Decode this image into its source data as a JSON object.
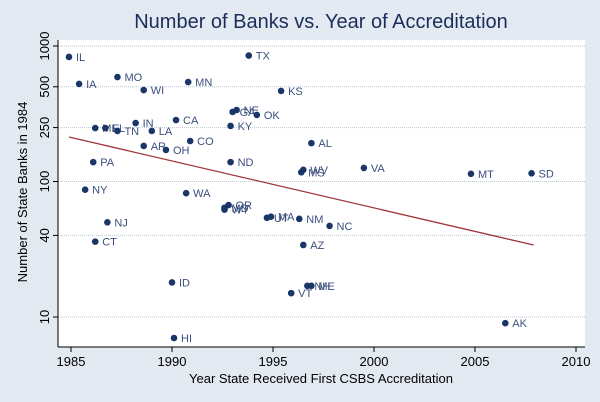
{
  "chart_data": {
    "type": "scatter",
    "title": "Number of Banks vs. Year of Accreditation",
    "xlabel": "Year State Received First CSBS Accreditation",
    "ylabel": "Number of State Banks in 1984",
    "xlim": [
      1984.4,
      2010.5
    ],
    "ylim": [
      6,
      1200
    ],
    "yscale": "log",
    "xticks": [
      1985,
      1990,
      1995,
      2000,
      2005,
      2010
    ],
    "yticks": [
      10,
      40,
      100,
      250,
      500,
      1000
    ],
    "grid": true,
    "legend": "none",
    "colors": {
      "points": "#1a3668",
      "fit_line": "#a0343a",
      "title": "#1c2d5c",
      "labels": "#3b4f7e"
    },
    "points": [
      {
        "label": "IL",
        "x": 1984.9,
        "y": 830
      },
      {
        "label": "IA",
        "x": 1985.4,
        "y": 525
      },
      {
        "label": "MO",
        "x": 1987.3,
        "y": 590
      },
      {
        "label": "WI",
        "x": 1988.6,
        "y": 473
      },
      {
        "label": "MN",
        "x": 1990.8,
        "y": 542
      },
      {
        "label": "TX",
        "x": 1993.8,
        "y": 850
      },
      {
        "label": "KS",
        "x": 1995.4,
        "y": 466
      },
      {
        "label": "NE",
        "x": 1993.2,
        "y": 337
      },
      {
        "label": "GA",
        "x": 1993.0,
        "y": 326
      },
      {
        "label": "OK",
        "x": 1994.2,
        "y": 310
      },
      {
        "label": "KY",
        "x": 1992.9,
        "y": 257
      },
      {
        "label": "CA",
        "x": 1990.2,
        "y": 284
      },
      {
        "label": "IN",
        "x": 1988.2,
        "y": 270
      },
      {
        "label": "LA",
        "x": 1989.0,
        "y": 236
      },
      {
        "label": "MI",
        "x": 1986.2,
        "y": 248
      },
      {
        "label": "FL",
        "x": 1986.7,
        "y": 248
      },
      {
        "label": "TN",
        "x": 1987.3,
        "y": 236
      },
      {
        "label": "AR",
        "x": 1988.6,
        "y": 183
      },
      {
        "label": "OH",
        "x": 1989.7,
        "y": 171
      },
      {
        "label": "CO",
        "x": 1990.9,
        "y": 199
      },
      {
        "label": "AL",
        "x": 1996.9,
        "y": 192
      },
      {
        "label": "ND",
        "x": 1992.9,
        "y": 139
      },
      {
        "label": "WV",
        "x": 1996.5,
        "y": 122
      },
      {
        "label": "MS",
        "x": 1996.4,
        "y": 117
      },
      {
        "label": "VA",
        "x": 1999.5,
        "y": 126
      },
      {
        "label": "MT",
        "x": 2004.8,
        "y": 114
      },
      {
        "label": "SD",
        "x": 2007.8,
        "y": 115
      },
      {
        "label": "PA",
        "x": 1986.1,
        "y": 139
      },
      {
        "label": "NY",
        "x": 1985.7,
        "y": 87
      },
      {
        "label": "WA",
        "x": 1990.7,
        "y": 82
      },
      {
        "label": "NJ",
        "x": 1986.8,
        "y": 50
      },
      {
        "label": "CT",
        "x": 1986.2,
        "y": 36
      },
      {
        "label": "OR",
        "x": 1992.8,
        "y": 67
      },
      {
        "label": "MD",
        "x": 1992.6,
        "y": 64
      },
      {
        "label": "WY",
        "x": 1992.6,
        "y": 62
      },
      {
        "label": "UT",
        "x": 1994.7,
        "y": 54
      },
      {
        "label": "MA",
        "x": 1994.9,
        "y": 55
      },
      {
        "label": "NM",
        "x": 1996.3,
        "y": 53
      },
      {
        "label": "NC",
        "x": 1997.8,
        "y": 47
      },
      {
        "label": "AZ",
        "x": 1996.5,
        "y": 34
      },
      {
        "label": "ID",
        "x": 1990.0,
        "y": 18
      },
      {
        "label": "VT",
        "x": 1995.9,
        "y": 15
      },
      {
        "label": "NH",
        "x": 1996.7,
        "y": 17
      },
      {
        "label": "ME",
        "x": 1996.9,
        "y": 17
      },
      {
        "label": "HI",
        "x": 1990.1,
        "y": 7
      },
      {
        "label": "AK",
        "x": 2006.5,
        "y": 9
      }
    ],
    "fit_line": {
      "x": [
        1984.9,
        2007.9
      ],
      "y": [
        213,
        34
      ]
    }
  }
}
